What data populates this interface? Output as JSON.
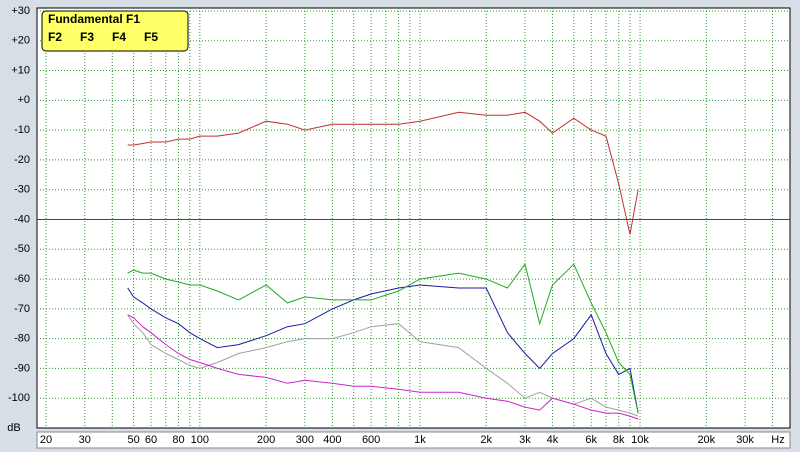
{
  "chart_data": {
    "type": "line",
    "x": [
      47,
      50,
      55,
      60,
      70,
      80,
      90,
      100,
      120,
      150,
      200,
      250,
      300,
      400,
      500,
      600,
      800,
      1000,
      1500,
      2000,
      2500,
      3000,
      3500,
      4000,
      5000,
      6000,
      7000,
      8000,
      9000,
      9800
    ],
    "series": [
      {
        "name": "Fundamental F1",
        "color": "#c03030",
        "values": [
          -15,
          -15,
          -14.5,
          -14,
          -14,
          -13,
          -13,
          -12,
          -12,
          -11,
          -7,
          -8,
          -10,
          -8,
          -8,
          -8,
          -8,
          -7,
          -4,
          -5,
          -5,
          -4,
          -7,
          -11,
          -6,
          -10,
          -12,
          -28,
          -45,
          -30
        ]
      },
      {
        "name": "F2",
        "color": "#22aa22",
        "values": [
          -58,
          -57,
          -58,
          -58,
          -60,
          -61,
          -62,
          -62,
          -64,
          -67,
          -62,
          -68,
          -66,
          -67,
          -67,
          -67,
          -64,
          -60,
          -58,
          -60,
          -63,
          -55,
          -75,
          -62,
          -55,
          -68,
          -78,
          -88,
          -92,
          -105
        ]
      },
      {
        "name": "F3",
        "color": "#1a1aa0",
        "values": [
          -63,
          -66,
          -68,
          -70,
          -73,
          -75,
          -78,
          -80,
          -83,
          -82,
          -79,
          -76,
          -75,
          -70,
          -67,
          -65,
          -63,
          -62,
          -63,
          -63,
          -78,
          -85,
          -90,
          -85,
          -80,
          -72,
          -85,
          -92,
          -90,
          -105
        ]
      },
      {
        "name": "F4",
        "color": "#cc22cc",
        "values": [
          -72,
          -73,
          -76,
          -78,
          -82,
          -85,
          -87,
          -88,
          -90,
          -92,
          -93,
          -95,
          -94,
          -95,
          -96,
          -96,
          -97,
          -98,
          -98,
          -100,
          -101,
          -103,
          -104,
          -100,
          -102,
          -104,
          -105,
          -105,
          -106,
          -107
        ]
      },
      {
        "name": "F5",
        "color": "#a0a0a0",
        "values": [
          -72,
          -75,
          -78,
          -82,
          -85,
          -87,
          -89,
          -90,
          -88,
          -85,
          -83,
          -81,
          -80,
          -80,
          -78,
          -76,
          -75,
          -81,
          -83,
          -90,
          -95,
          -100,
          -98,
          -100,
          -102,
          -100,
          -103,
          -104,
          -105,
          -106
        ]
      }
    ],
    "xlog": true,
    "xlim": [
      18.2,
      48000
    ],
    "ylim": [
      -110,
      31
    ],
    "xticks": [
      20,
      30,
      50,
      60,
      80,
      100,
      200,
      300,
      400,
      600,
      {
        "value": 1000,
        "label": "1k"
      },
      {
        "value": 2000,
        "label": "2k"
      },
      {
        "value": 3000,
        "label": "3k"
      },
      {
        "value": 4000,
        "label": "4k"
      },
      {
        "value": 6000,
        "label": "6k"
      },
      {
        "value": 8000,
        "label": "8k"
      },
      {
        "value": 10000,
        "label": "10k"
      },
      {
        "value": 20000,
        "label": "20k"
      },
      {
        "value": 30000,
        "label": "30k"
      }
    ],
    "xgrid": [
      20,
      30,
      40,
      50,
      60,
      70,
      80,
      90,
      100,
      200,
      300,
      400,
      500,
      600,
      700,
      800,
      900,
      1000,
      2000,
      3000,
      4000,
      5000,
      6000,
      7000,
      8000,
      9000,
      10000,
      20000,
      30000,
      40000
    ],
    "yticks": [
      {
        "value": 30,
        "label": "+30"
      },
      {
        "value": 20,
        "label": "+20"
      },
      {
        "value": 10,
        "label": "+10"
      },
      {
        "value": 0,
        "label": "+0"
      },
      -10,
      -20,
      -30,
      -40,
      -50,
      -60,
      -70,
      -80,
      -90,
      -100
    ],
    "reference_line": -40,
    "x_unit": "Hz",
    "y_unit": "dB",
    "grid": true,
    "legend": "upper-left"
  }
}
